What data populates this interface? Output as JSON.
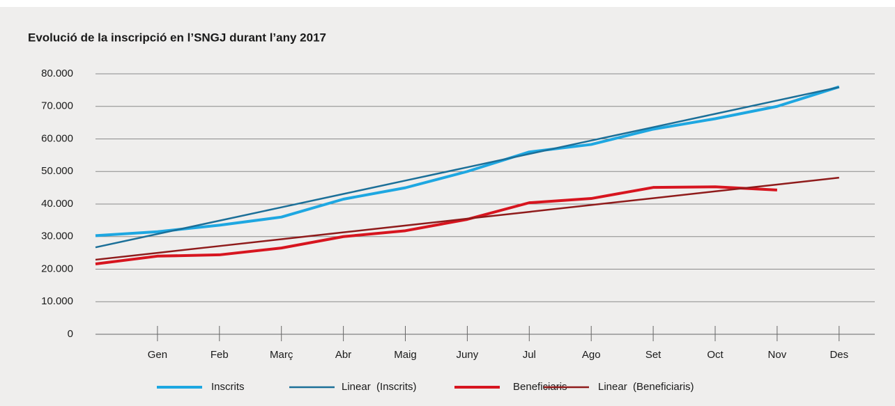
{
  "chart_data": {
    "type": "line",
    "title": "Evolució de la inscripció en l’SNGJ durant l’any 2017",
    "categories": [
      null,
      "Gen",
      "Feb",
      "Març",
      "Abr",
      "Maig",
      "Juny",
      "Jul",
      "Ago",
      "Set",
      "Oct",
      "Nov",
      "Des"
    ],
    "series": [
      {
        "name": "Inscrits",
        "color": "#1ea7e1",
        "values": [
          30300,
          31500,
          33500,
          36000,
          41500,
          45000,
          50000,
          56000,
          58300,
          63000,
          66200,
          70000,
          76000
        ]
      },
      {
        "name": "Linear  (Inscrits)",
        "color": "#1b6f98",
        "values": [
          26700,
          30800,
          34900,
          39000,
          43100,
          47200,
          51300,
          55400,
          59500,
          63600,
          67700,
          71800,
          75900
        ]
      },
      {
        "name": "Beneficiaris",
        "color": "#d7151f",
        "values": [
          21600,
          24000,
          24400,
          26500,
          30000,
          31800,
          35300,
          40400,
          41700,
          45100,
          45300,
          44300,
          null
        ]
      },
      {
        "name": "Linear  (Beneficiaris)",
        "color": "#8f1b1b",
        "values": [
          22900,
          25000,
          27100,
          29200,
          31300,
          33400,
          35500,
          37600,
          39700,
          41800,
          43900,
          46000,
          48100
        ]
      }
    ],
    "ylim": [
      0,
      80000
    ],
    "yticks": [
      0,
      {
        "value": 10000,
        "label": "10.000"
      },
      {
        "value": 20000,
        "label": "20.000"
      },
      {
        "value": 30000,
        "label": "30.000"
      },
      {
        "value": 40000,
        "label": "40.000"
      },
      {
        "value": 50000,
        "label": "50.000"
      },
      {
        "value": 60000,
        "label": "60.000"
      },
      {
        "value": 70000,
        "label": "70.000"
      },
      {
        "value": 80000,
        "label": "80.000"
      }
    ],
    "grid": true,
    "legend": "bottom"
  }
}
